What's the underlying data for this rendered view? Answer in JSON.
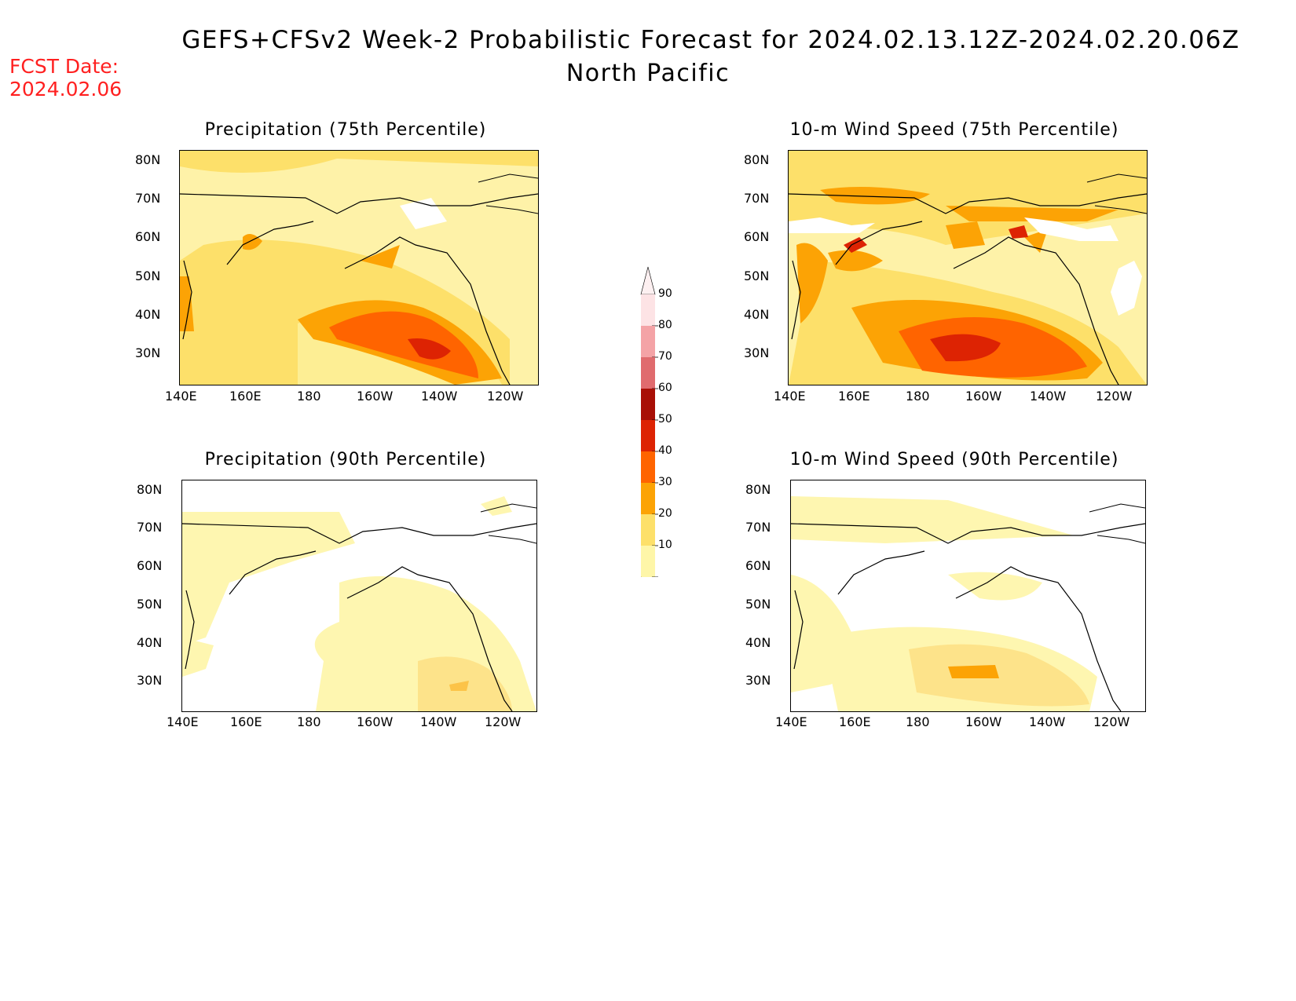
{
  "header": {
    "title": "GEFS+CFSv2 Week-2 Probabilistic Forecast for 2024.02.13.12Z-2024.02.20.06Z",
    "subtitle": "North Pacific",
    "fcst_label": "FCST Date:",
    "fcst_date": "2024.02.06"
  },
  "colorbar": {
    "levels": [
      "90",
      "80",
      "70",
      "60",
      "50",
      "40",
      "30",
      "20",
      "10"
    ],
    "colors": [
      "#fde3e5",
      "#f4a3a6",
      "#e06b6e",
      "#a80f06",
      "#dd2303",
      "#ff6400",
      "#fca305",
      "#fde06a",
      "#fef6a8"
    ]
  },
  "axes": {
    "x_ticks": [
      "140E",
      "160E",
      "180",
      "160W",
      "140W",
      "120W"
    ],
    "y_ticks": [
      "80N",
      "70N",
      "60N",
      "50N",
      "40N",
      "30N"
    ]
  },
  "panels": {
    "precip75": {
      "title": "Precipitation (75th Percentile)"
    },
    "wind75": {
      "title": "10-m Wind Speed (75th Percentile)"
    },
    "precip90": {
      "title": "Precipitation (90th Percentile)"
    },
    "wind90": {
      "title": "10-m Wind Speed (90th Percentile)"
    }
  }
}
